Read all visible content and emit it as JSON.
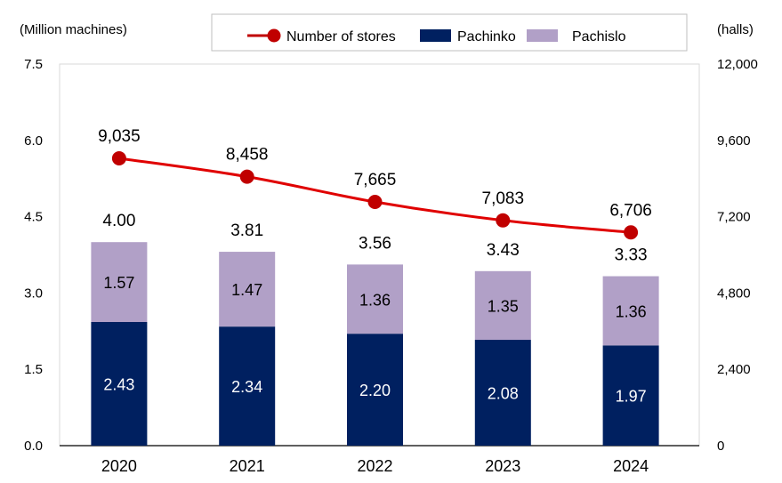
{
  "chart_data": {
    "type": "bar",
    "subtype": "stacked-bar-with-line",
    "title": "",
    "categories": [
      "2020",
      "2021",
      "2022",
      "2023",
      "2024"
    ],
    "series": [
      {
        "name": "Pachinko",
        "type": "bar",
        "axis": "left",
        "color": "#002060",
        "values": [
          2.43,
          2.34,
          2.2,
          2.08,
          1.97
        ],
        "labels": [
          "2.43",
          "2.34",
          "2.20",
          "2.08",
          "1.97"
        ]
      },
      {
        "name": "Pachislo",
        "type": "bar",
        "axis": "left",
        "color": "#B1A0C7",
        "values": [
          1.57,
          1.47,
          1.36,
          1.35,
          1.36
        ],
        "labels": [
          "1.57",
          "1.47",
          "1.36",
          "1.35",
          "1.36"
        ]
      },
      {
        "name": "Number of stores",
        "type": "line",
        "axis": "right",
        "color": "#E00000",
        "marker_color": "#C00000",
        "values": [
          9035,
          8458,
          7665,
          7083,
          6706
        ],
        "labels": [
          "9,035",
          "8,458",
          "7,665",
          "7,083",
          "6,706"
        ]
      }
    ],
    "totals": [
      4.0,
      3.81,
      3.56,
      3.43,
      3.33
    ],
    "total_labels": [
      "4.00",
      "3.81",
      "3.56",
      "3.43",
      "3.33"
    ],
    "ylabel": "(Million machines)",
    "y2label": "(halls)",
    "ylim": [
      0,
      7.5
    ],
    "y2lim": [
      0,
      12000
    ],
    "yticks": [
      0,
      1.5,
      3.0,
      4.5,
      6.0,
      7.5
    ],
    "ytick_labels": [
      "0.0",
      "1.5",
      "3.0",
      "4.5",
      "6.0",
      "7.5"
    ],
    "y2ticks": [
      0,
      2400,
      4800,
      7200,
      9600,
      12000
    ],
    "y2tick_labels": [
      "0",
      "2,400",
      "4,800",
      "7,200",
      "9,600",
      "12,000"
    ],
    "grid": false,
    "legend": {
      "position": "top",
      "entries": [
        "Number of stores",
        "Pachinko",
        "Pachislo"
      ]
    }
  }
}
